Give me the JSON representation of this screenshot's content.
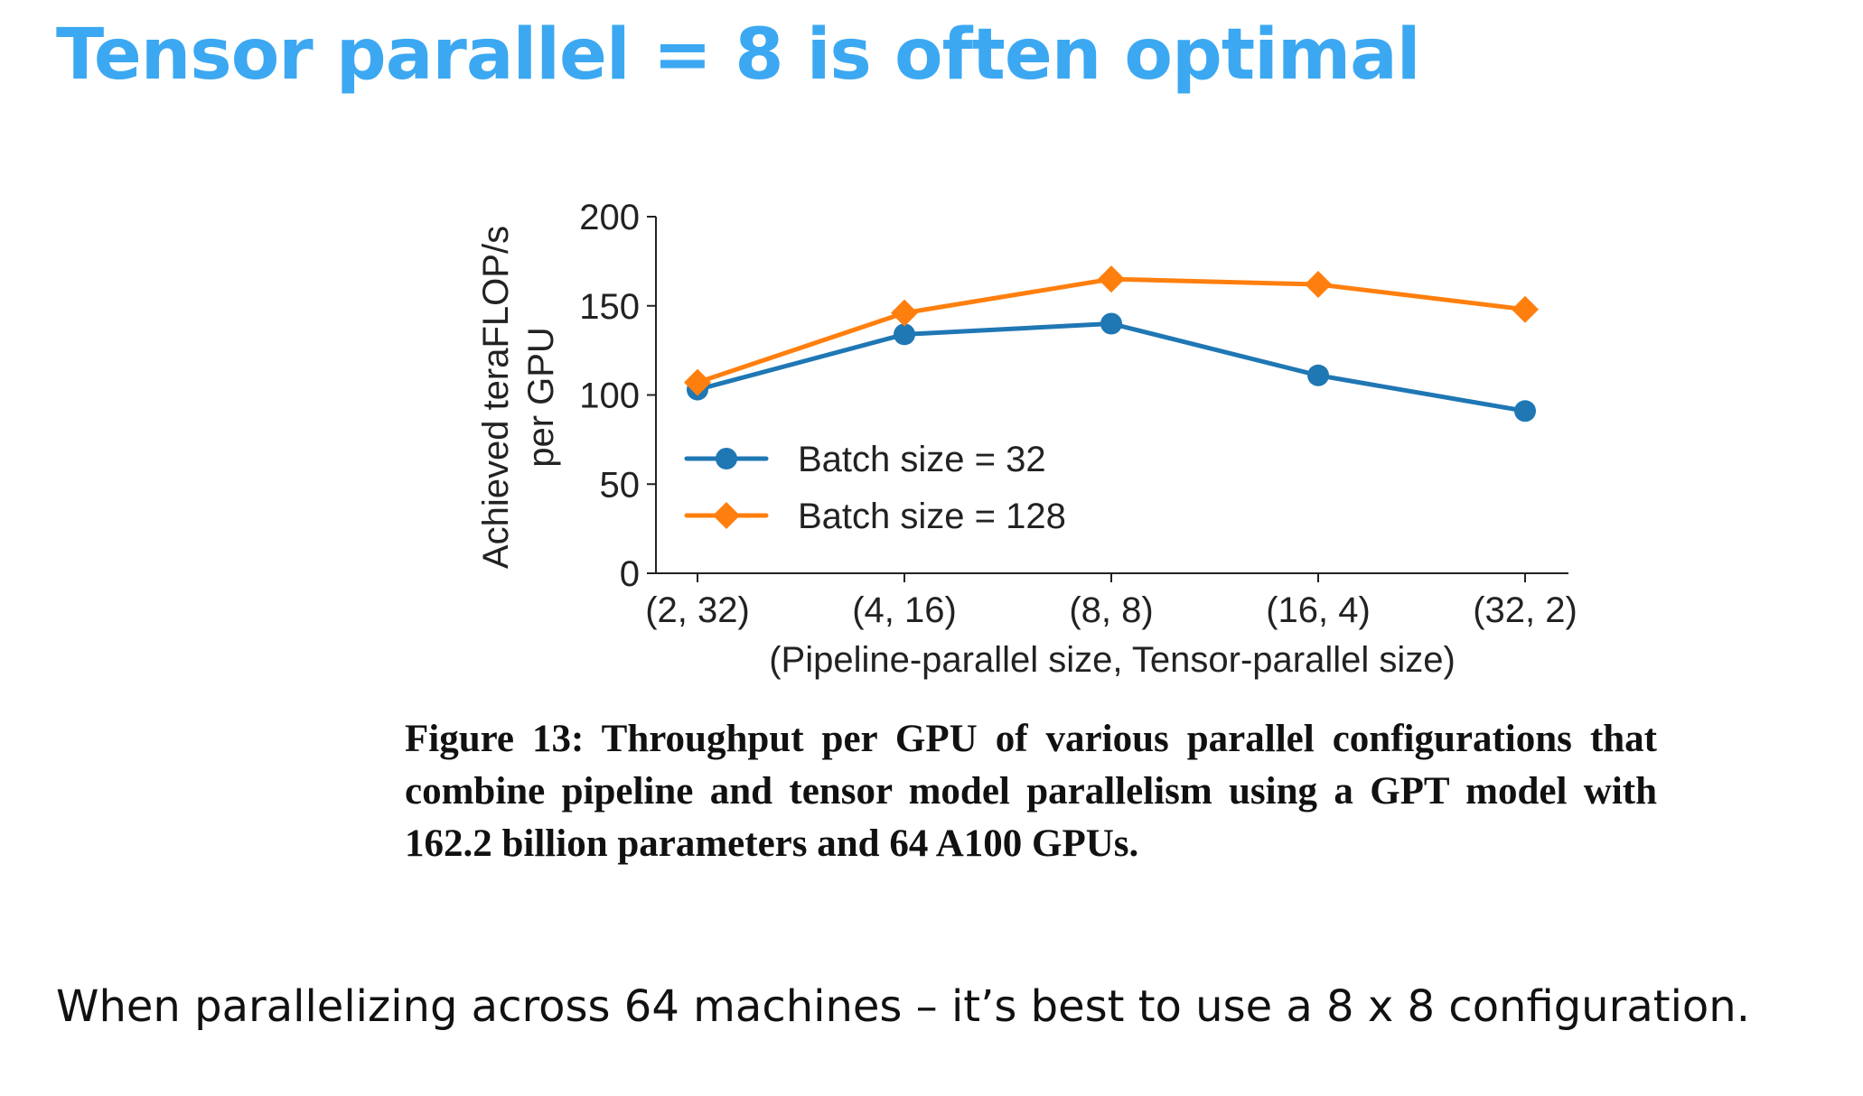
{
  "slide": {
    "title": "Tensor parallel = 8 is often optimal",
    "caption": "Figure 13: Throughput per GPU of various parallel configurations that combine pipeline and tensor model parallelism using a GPT model with 162.2 billion parameters and 64 A100 GPUs.",
    "body_text": "When parallelizing across 64 machines – it’s best to use a 8 x 8 configuration."
  },
  "chart_data": {
    "type": "line",
    "categories": [
      "(2, 32)",
      "(4, 16)",
      "(8, 8)",
      "(16, 4)",
      "(32, 2)"
    ],
    "xlabel": "(Pipeline-parallel size, Tensor-parallel size)",
    "ylabel_lines": [
      "Achieved teraFLOP/s",
      "per GPU"
    ],
    "ylim": [
      0,
      200
    ],
    "yticks": [
      0,
      50,
      100,
      150,
      200
    ],
    "grid": false,
    "legend_position": "center-left",
    "series": [
      {
        "name": "Batch size = 32",
        "values": [
          103,
          134,
          140,
          111,
          91
        ],
        "color": "#1f77b4",
        "marker": "circle"
      },
      {
        "name": "Batch size = 128",
        "values": [
          107,
          146,
          165,
          162,
          148
        ],
        "color": "#ff7f0e",
        "marker": "diamond"
      }
    ]
  }
}
